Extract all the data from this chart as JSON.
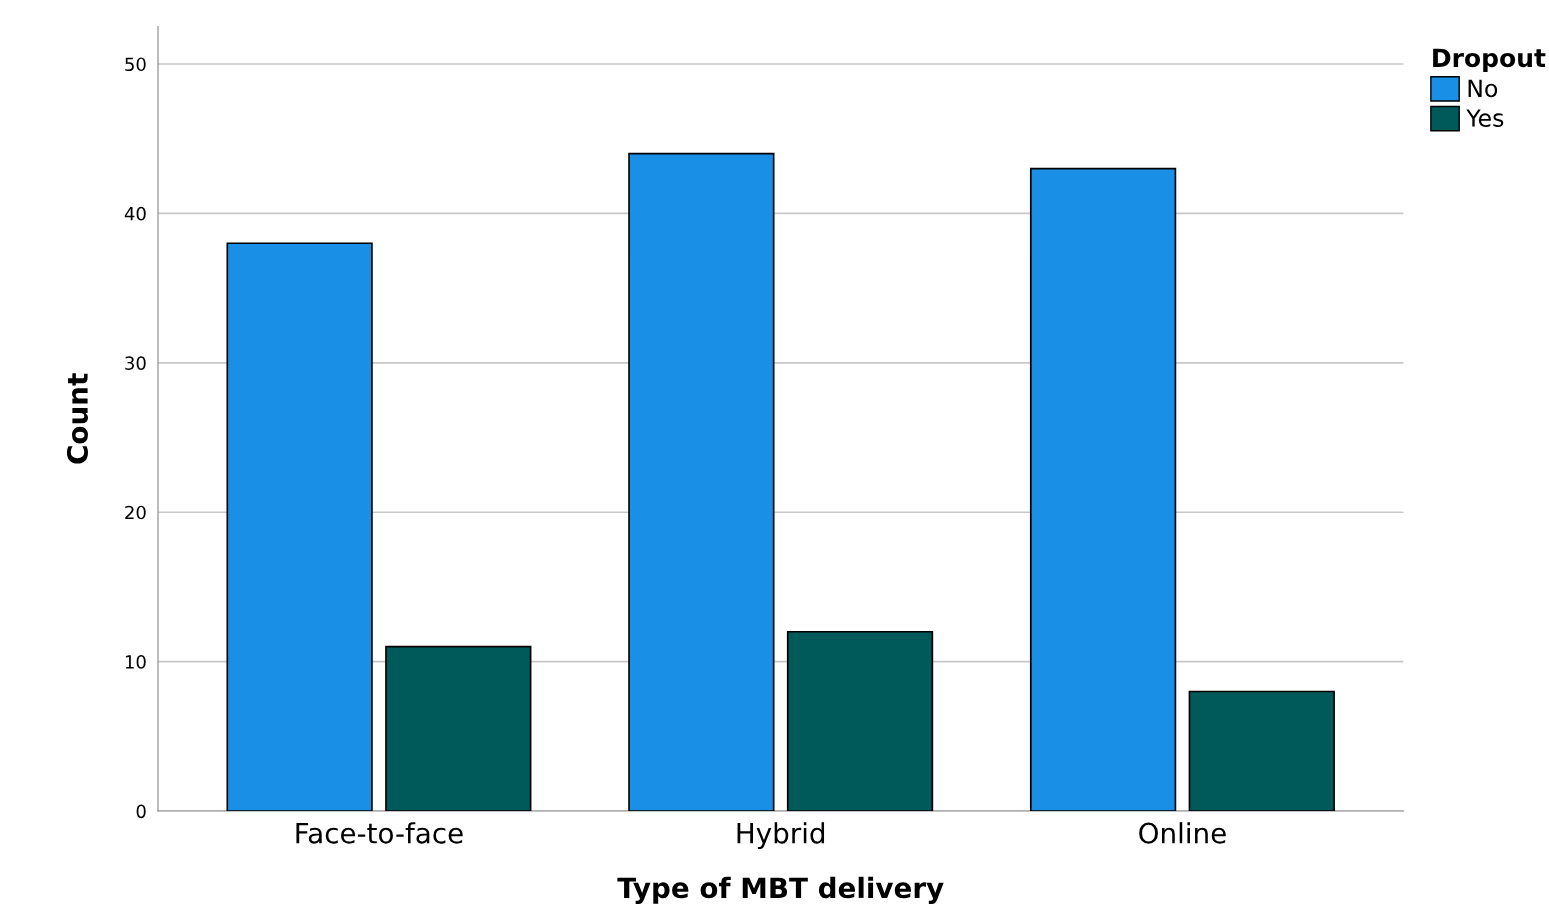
{
  "chart_data": {
    "type": "bar",
    "xlabel": "Type of MBT delivery",
    "ylabel": "Count",
    "legend_title": "Dropout",
    "categories": [
      "Face-to-face",
      "Hybrid",
      "Online"
    ],
    "series": [
      {
        "name": "No",
        "color": "#1a8fe6",
        "values": [
          38,
          44,
          43
        ]
      },
      {
        "name": "Yes",
        "color": "#015a5a",
        "values": [
          11,
          12,
          8
        ]
      }
    ],
    "ylim": [
      0,
      52.5
    ],
    "yticks": [
      0,
      10,
      20,
      30,
      40,
      50
    ],
    "grid": "y",
    "legend": "top right"
  }
}
